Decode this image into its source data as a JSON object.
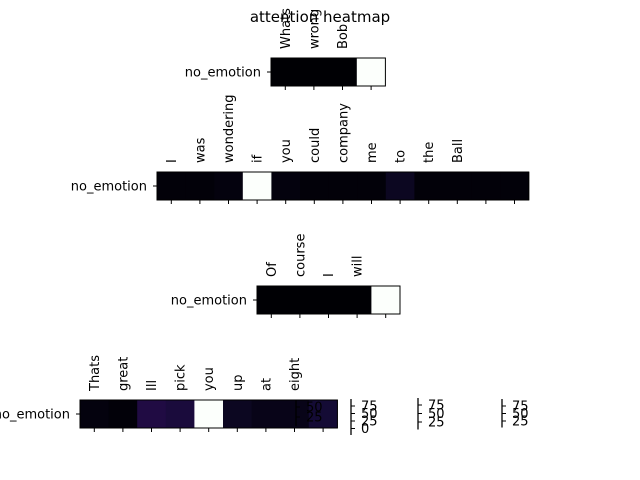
{
  "chart_data": {
    "type": "heatmap",
    "title": "attention heatmap",
    "colormap": "inferno",
    "panels": [
      {
        "row_label": "no_emotion",
        "tokens": [
          "Whats",
          "wrong",
          "Bob",
          ""
        ],
        "values": [
          0.0,
          0.0,
          0.0,
          1.0
        ]
      },
      {
        "row_label": "no_emotion",
        "tokens": [
          "I",
          "was",
          "wondering",
          "if",
          "you",
          "could",
          "company",
          "me",
          "to",
          "the",
          "Ball",
          "",
          ""
        ],
        "values": [
          0.01,
          0.01,
          0.02,
          1.0,
          0.02,
          0.01,
          0.01,
          0.01,
          0.06,
          0.01,
          0.01,
          0.01,
          0.01
        ]
      },
      {
        "row_label": "no_emotion",
        "tokens": [
          "Of",
          "course",
          "I",
          "will",
          ""
        ],
        "values": [
          0.0,
          0.0,
          0.0,
          0.0,
          1.0
        ]
      },
      {
        "row_label": "no_emotion",
        "tokens": [
          "Thats",
          "great",
          "Ill",
          "pick",
          "you",
          "up",
          "at",
          "eight",
          ""
        ],
        "values": [
          0.02,
          0.01,
          0.14,
          0.12,
          1.0,
          0.06,
          0.04,
          0.04,
          0.1
        ]
      }
    ],
    "colorbars": [
      {
        "ticks": [
          "50",
          "25"
        ]
      },
      {
        "ticks": [
          "75",
          "50",
          "25",
          "0"
        ]
      },
      {
        "ticks": [
          "75",
          "50",
          "25"
        ]
      },
      {
        "ticks": [
          "75",
          "50",
          "25"
        ]
      }
    ]
  }
}
